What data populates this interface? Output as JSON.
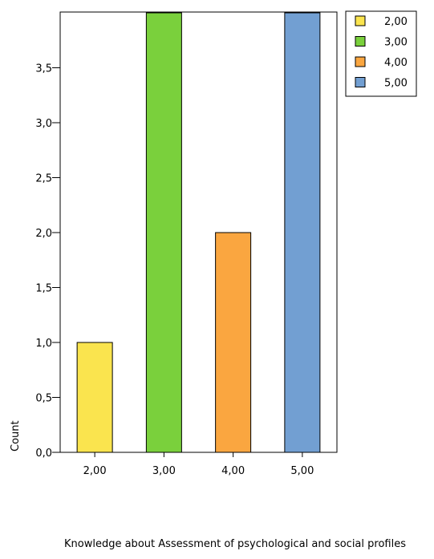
{
  "chart_data": {
    "type": "bar",
    "categories": [
      "2,00",
      "3,00",
      "4,00",
      "5,00"
    ],
    "values": [
      1,
      4,
      2,
      4
    ],
    "colors": [
      "#fae44e",
      "#7ad03c",
      "#faa640",
      "#729fd2"
    ],
    "xlabel": "Knowledge about Assessment of psychological and social profiles",
    "ylabel": "Count",
    "ylim": [
      0,
      4
    ],
    "yticks": [
      {
        "value": 0,
        "label": "0,0"
      },
      {
        "value": 0.5,
        "label": "0,5"
      },
      {
        "value": 1,
        "label": "1,0"
      },
      {
        "value": 1.5,
        "label": "1,5"
      },
      {
        "value": 2,
        "label": "2,0"
      },
      {
        "value": 2.5,
        "label": "2,5"
      },
      {
        "value": 3,
        "label": "3,0"
      },
      {
        "value": 3.5,
        "label": "3,5"
      }
    ],
    "legend": {
      "placement": "top-right",
      "entries": [
        "2,00",
        "3,00",
        "4,00",
        "5,00"
      ]
    },
    "grid": false
  }
}
